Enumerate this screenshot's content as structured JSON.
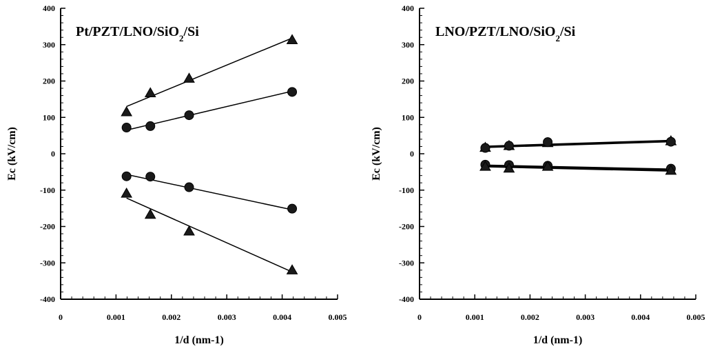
{
  "chart_data": [
    {
      "type": "scatter",
      "title": "Pt/PZT/LNO/SiO₂/Si",
      "xlabel": "1/d (nm-1)",
      "ylabel": "Ec (kV/cm)",
      "xlim": [
        0,
        0.005
      ],
      "ylim": [
        -400,
        400
      ],
      "xticks": [
        "0",
        "0.001",
        "0.002",
        "0.003",
        "0.004",
        "0.005"
      ],
      "yticks": [
        "400",
        "300",
        "200",
        "100",
        "0",
        "-100",
        "-200",
        "-300",
        "-400"
      ],
      "grid": false,
      "series": [
        {
          "marker": "triangle",
          "x": [
            0.00119,
            0.00162,
            0.00232,
            0.00418
          ],
          "y": [
            115,
            167,
            207,
            313
          ],
          "fit": [
            [
              0.00119,
              130
            ],
            [
              0.00418,
              318
            ]
          ]
        },
        {
          "marker": "circle",
          "x": [
            0.00119,
            0.00162,
            0.00232,
            0.00418
          ],
          "y": [
            72,
            76,
            106,
            170
          ],
          "fit": [
            [
              0.00119,
              65
            ],
            [
              0.00418,
              172
            ]
          ]
        },
        {
          "marker": "circle",
          "x": [
            0.00119,
            0.00162,
            0.00232,
            0.00418
          ],
          "y": [
            -62,
            -63,
            -92,
            -151
          ],
          "fit": [
            [
              0.00119,
              -57
            ],
            [
              0.00418,
              -154
            ]
          ]
        },
        {
          "marker": "triangle",
          "x": [
            0.00119,
            0.00162,
            0.00232,
            0.00418
          ],
          "y": [
            -109,
            -167,
            -213,
            -320
          ],
          "fit": [
            [
              0.00119,
              -122
            ],
            [
              0.00418,
              -325
            ]
          ]
        }
      ]
    },
    {
      "type": "scatter",
      "title": "LNO/PZT/LNO/SiO₂/Si",
      "xlabel": "1/d (nm-1)",
      "ylabel": "Ec (kV/cm)",
      "xlim": [
        0,
        0.005
      ],
      "ylim": [
        -400,
        400
      ],
      "xticks": [
        "0",
        "0.001",
        "0.002",
        "0.003",
        "0.004",
        "0.005"
      ],
      "yticks": [
        "400",
        "300",
        "200",
        "100",
        "0",
        "-100",
        "-200",
        "-300",
        "-400"
      ],
      "grid": false,
      "series": [
        {
          "marker": "triangle",
          "x": [
            0.00119,
            0.00162,
            0.00232,
            0.00455
          ],
          "y": [
            17,
            22,
            30,
            35
          ],
          "fit": [
            [
              0.00119,
              20
            ],
            [
              0.00455,
              36
            ]
          ]
        },
        {
          "marker": "circle",
          "x": [
            0.00119,
            0.00162,
            0.00232,
            0.00455
          ],
          "y": [
            16,
            22,
            32,
            33
          ],
          "fit": [
            [
              0.00119,
              18
            ],
            [
              0.00455,
              34
            ]
          ]
        },
        {
          "marker": "circle",
          "x": [
            0.00119,
            0.00162,
            0.00232,
            0.00455
          ],
          "y": [
            -30,
            -31,
            -33,
            -41
          ],
          "fit": [
            [
              0.00119,
              -32
            ],
            [
              0.00455,
              -43
            ]
          ]
        },
        {
          "marker": "triangle",
          "x": [
            0.00119,
            0.00162,
            0.00232,
            0.00455
          ],
          "y": [
            -35,
            -40,
            -35,
            -46
          ],
          "fit": [
            [
              0.00119,
              -35
            ],
            [
              0.00455,
              -47
            ]
          ]
        }
      ]
    }
  ]
}
